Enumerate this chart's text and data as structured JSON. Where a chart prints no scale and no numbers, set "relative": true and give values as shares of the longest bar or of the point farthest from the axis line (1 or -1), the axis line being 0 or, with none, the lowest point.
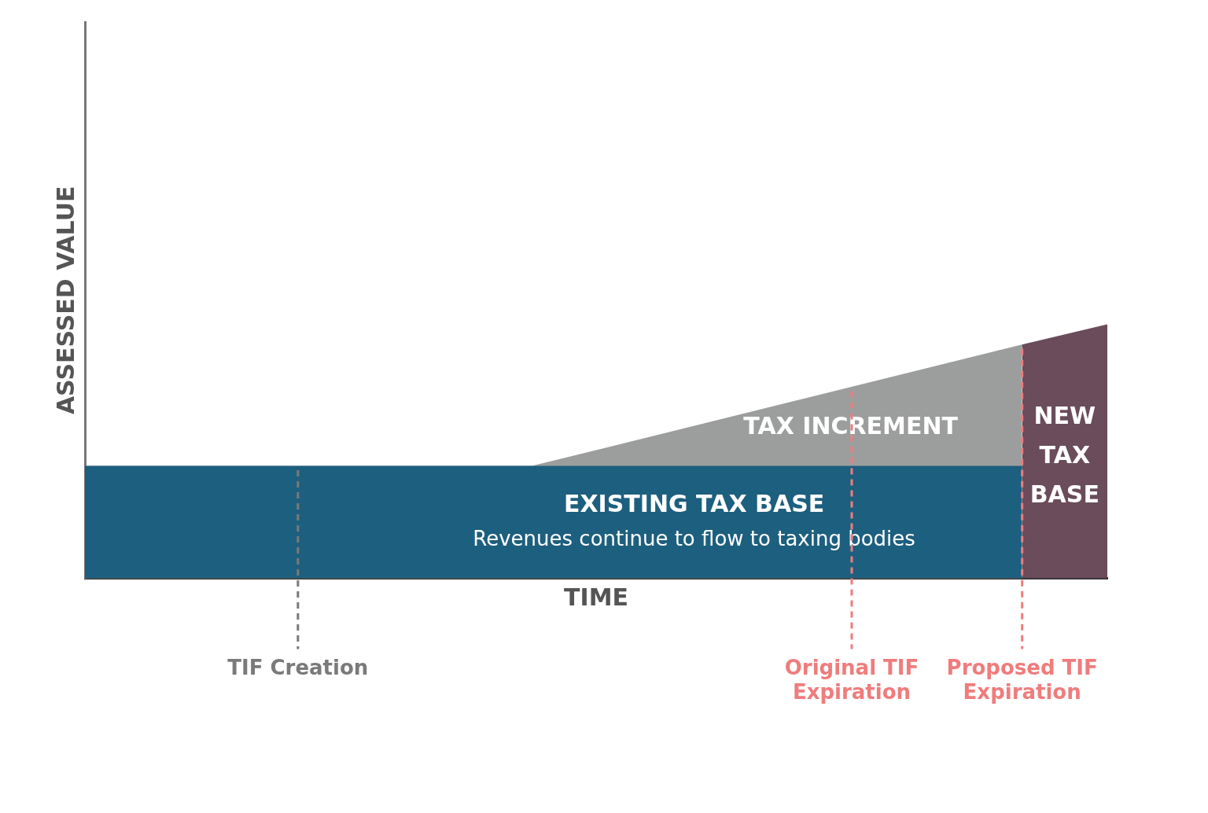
{
  "chart_data": {
    "type": "area",
    "relative": true,
    "xlabel": "TIME",
    "ylabel": "ASSESSED VALUE",
    "tick_labels": "x",
    "grid": false,
    "legend": false,
    "categories": [
      null,
      null,
      null,
      null,
      null,
      null,
      null,
      null,
      null,
      null,
      "TIF Creation",
      null,
      null,
      null,
      null,
      null,
      null,
      null,
      null,
      null,
      null,
      null,
      null,
      null,
      null,
      null,
      null,
      null,
      null,
      null,
      null,
      null,
      null,
      null,
      null,
      null,
      "Original TIF Expiration",
      null,
      null,
      null,
      null,
      null,
      null,
      null,
      "Proposed TIF Expiration",
      null,
      null,
      null,
      null
    ],
    "series": [
      {
        "name": "TAX INCREMENT",
        "color": "#9c9e9d",
        "values": [
          0.44,
          null,
          null,
          null,
          null,
          null,
          null,
          null,
          null,
          null,
          null,
          null,
          null,
          null,
          null,
          null,
          null,
          null,
          null,
          null,
          null,
          0.44,
          null,
          null,
          null,
          null,
          null,
          null,
          null,
          null,
          null,
          null,
          null,
          null,
          null,
          null,
          null,
          null,
          null,
          null,
          null,
          null,
          null,
          null,
          0.92,
          null,
          null,
          null,
          null
        ]
      },
      {
        "name": "EXISTING TAX BASE",
        "color": "#1d5f7e",
        "values": [
          0.44,
          null,
          null,
          null,
          null,
          null,
          null,
          null,
          null,
          null,
          null,
          null,
          null,
          null,
          null,
          null,
          null,
          null,
          null,
          null,
          null,
          null,
          null,
          null,
          null,
          null,
          null,
          null,
          null,
          null,
          null,
          null,
          null,
          null,
          null,
          null,
          null,
          null,
          null,
          null,
          null,
          null,
          null,
          null,
          0.44,
          null,
          null,
          null,
          null
        ]
      },
      {
        "name": "NEW TAX BASE",
        "color": "#6a4c5b",
        "values": [
          null,
          null,
          null,
          null,
          null,
          null,
          null,
          null,
          null,
          null,
          null,
          null,
          null,
          null,
          null,
          null,
          null,
          null,
          null,
          null,
          null,
          null,
          null,
          null,
          null,
          null,
          null,
          null,
          null,
          null,
          null,
          null,
          null,
          null,
          null,
          null,
          null,
          null,
          null,
          null,
          null,
          null,
          null,
          null,
          0.92,
          null,
          null,
          null,
          1.0
        ]
      }
    ],
    "annotations": [
      "Revenues continue to flow to taxing bodies"
    ],
    "ref_lines": [
      {
        "axis": "x",
        "value": "TIF Creation",
        "color": "#7a7a7a",
        "line_style": "dashed"
      },
      {
        "axis": "x",
        "value": "Original TIF Expiration",
        "color": "#f07c7c",
        "line_style": "dashed"
      },
      {
        "axis": "x",
        "value": "Proposed TIF Expiration",
        "color": "#f07c7c",
        "line_style": "dashed"
      }
    ]
  }
}
